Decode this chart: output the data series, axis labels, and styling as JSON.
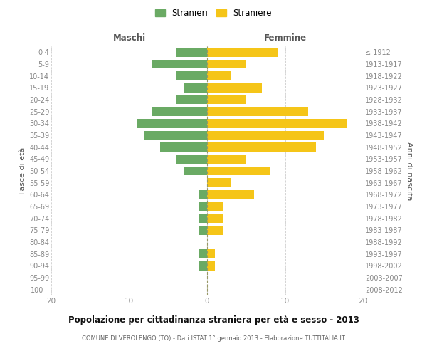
{
  "age_groups": [
    "0-4",
    "5-9",
    "10-14",
    "15-19",
    "20-24",
    "25-29",
    "30-34",
    "35-39",
    "40-44",
    "45-49",
    "50-54",
    "55-59",
    "60-64",
    "65-69",
    "70-74",
    "75-79",
    "80-84",
    "85-89",
    "90-94",
    "95-99",
    "100+"
  ],
  "birth_years": [
    "2008-2012",
    "2003-2007",
    "1998-2002",
    "1993-1997",
    "1988-1992",
    "1983-1987",
    "1978-1982",
    "1973-1977",
    "1968-1972",
    "1963-1967",
    "1958-1962",
    "1953-1957",
    "1948-1952",
    "1943-1947",
    "1938-1942",
    "1933-1937",
    "1928-1932",
    "1923-1927",
    "1918-1922",
    "1913-1917",
    "≤ 1912"
  ],
  "maschi": [
    4,
    7,
    4,
    3,
    4,
    7,
    9,
    8,
    6,
    4,
    3,
    0,
    1,
    1,
    1,
    1,
    0,
    1,
    1,
    0,
    0
  ],
  "femmine": [
    9,
    5,
    3,
    7,
    5,
    13,
    18,
    15,
    14,
    5,
    8,
    3,
    6,
    2,
    2,
    2,
    0,
    1,
    1,
    0,
    0
  ],
  "color_maschi": "#6aaa64",
  "color_femmine": "#f5c518",
  "title": "Popolazione per cittadinanza straniera per età e sesso - 2013",
  "subtitle": "COMUNE DI VEROLENGO (TO) - Dati ISTAT 1° gennaio 2013 - Elaborazione TUTTITALIA.IT",
  "xlabel_left": "Maschi",
  "xlabel_right": "Femmine",
  "ylabel_left": "Fasce di età",
  "ylabel_right": "Anni di nascita",
  "legend_maschi": "Stranieri",
  "legend_femmine": "Straniere",
  "xlim": 20,
  "bg_color": "#ffffff",
  "grid_color": "#cccccc"
}
